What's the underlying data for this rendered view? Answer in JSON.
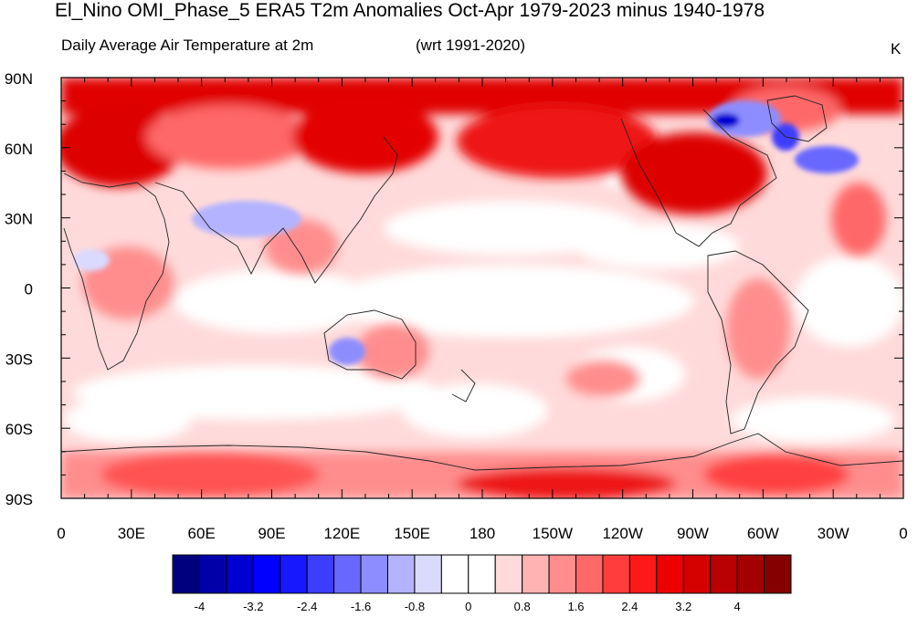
{
  "title": "El_Nino OMI_Phase_5 ERA5 T2m Anomalies Oct-Apr 1979-2023 minus 1940-1978",
  "subtitle_left": "Daily Average Air Temperature at 2m",
  "subtitle_mid": "(wrt 1991-2020)",
  "units": "K",
  "map": {
    "lon_labels": [
      "0",
      "30E",
      "60E",
      "90E",
      "120E",
      "150E",
      "180",
      "150W",
      "120W",
      "90W",
      "60W",
      "30W",
      "0"
    ],
    "lat_labels": [
      "90N",
      "60N",
      "30N",
      "0",
      "30S",
      "60S",
      "90S"
    ]
  },
  "colorbar": {
    "colors": [
      "#00007f",
      "#0000a9",
      "#0000d2",
      "#0000ff",
      "#1818ff",
      "#3d3dff",
      "#6868ff",
      "#8d8dff",
      "#b3b3ff",
      "#dadaff",
      "#ffffff",
      "#ffffff",
      "#ffdada",
      "#ffb3b3",
      "#ff8d8d",
      "#ff6868",
      "#ff3d3d",
      "#ff1818",
      "#ee0000",
      "#d50000",
      "#bb0000",
      "#a40000",
      "#850000"
    ],
    "labels": [
      "-4",
      "-3.2",
      "-2.4",
      "-1.6",
      "-0.8",
      "0",
      "0.8",
      "1.6",
      "2.4",
      "3.2",
      "4"
    ]
  }
}
